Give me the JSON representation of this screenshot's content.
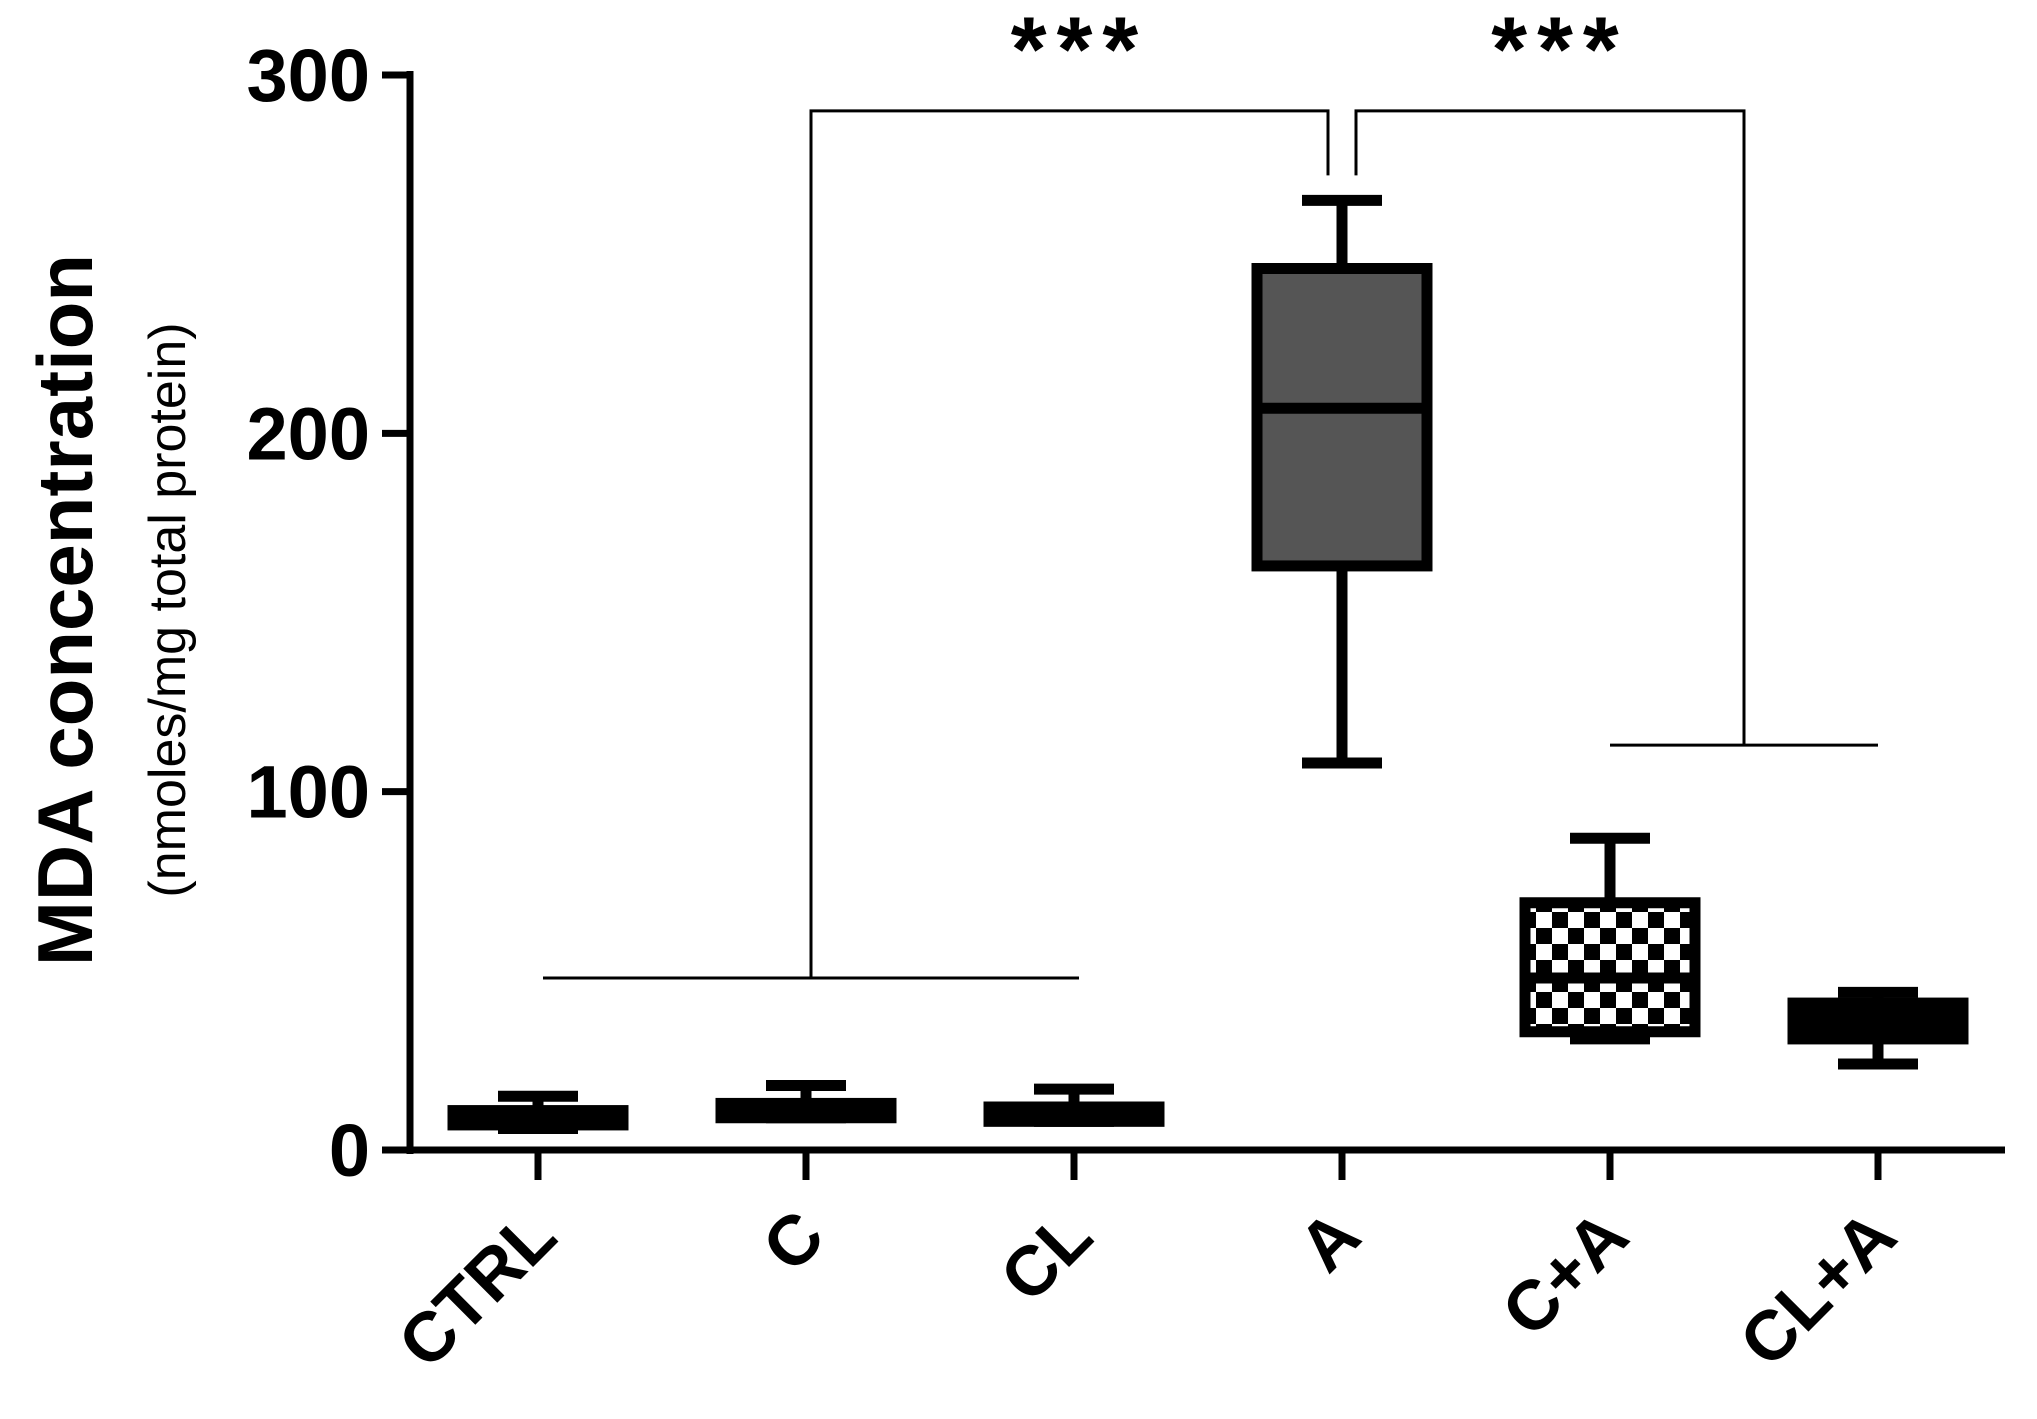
{
  "chart_data": {
    "type": "box",
    "ylabel": "MDA concentration",
    "ylabel_sub": "(nmoles/mg total protein)",
    "xlabel": "",
    "ylim": [
      0,
      300
    ],
    "yticks": [
      0,
      100,
      200,
      300
    ],
    "ytick_labels": [
      "0",
      "100",
      "200",
      "300"
    ],
    "categories": [
      "CTRL",
      "C",
      "CL",
      "A",
      "C+A",
      "CL+A"
    ],
    "boxes": [
      {
        "category": "CTRL",
        "min": 6,
        "q1": 7,
        "median": 10,
        "q3": 11,
        "max": 15,
        "fill": "#000000",
        "pattern": "solid"
      },
      {
        "category": "C",
        "min": 9,
        "q1": 9,
        "median": 12,
        "q3": 13,
        "max": 18,
        "fill": "#000000",
        "pattern": "solid"
      },
      {
        "category": "CL",
        "min": 8,
        "q1": 8,
        "median": 11,
        "q3": 12,
        "max": 17,
        "fill": "#000000",
        "pattern": "solid"
      },
      {
        "category": "A",
        "min": 108,
        "q1": 163,
        "median": 207,
        "q3": 246,
        "max": 265,
        "fill": "#555555",
        "pattern": "solid"
      },
      {
        "category": "C+A",
        "min": 31,
        "q1": 33,
        "median": 48,
        "q3": 69,
        "max": 87,
        "fill": "#ffffff",
        "pattern": "checker"
      },
      {
        "category": "CL+A",
        "min": 24,
        "q1": 31,
        "median": 37,
        "q3": 41,
        "max": 44,
        "fill": "#000000",
        "pattern": "solid"
      }
    ],
    "significance": [
      {
        "label": "***",
        "from_group": [
          "CTRL",
          "C",
          "CL"
        ],
        "to": "A",
        "base_y": 48,
        "top_y": 290,
        "end_y": 272
      },
      {
        "label": "***",
        "from": "A",
        "to_group": [
          "C+A",
          "CL+A"
        ],
        "base_y": 113,
        "top_y": 290,
        "end_y": 272
      }
    ],
    "colors": {
      "axis": "#000000",
      "A_fill": "#555555",
      "background": "#ffffff"
    },
    "grid": false,
    "legend": "none"
  }
}
